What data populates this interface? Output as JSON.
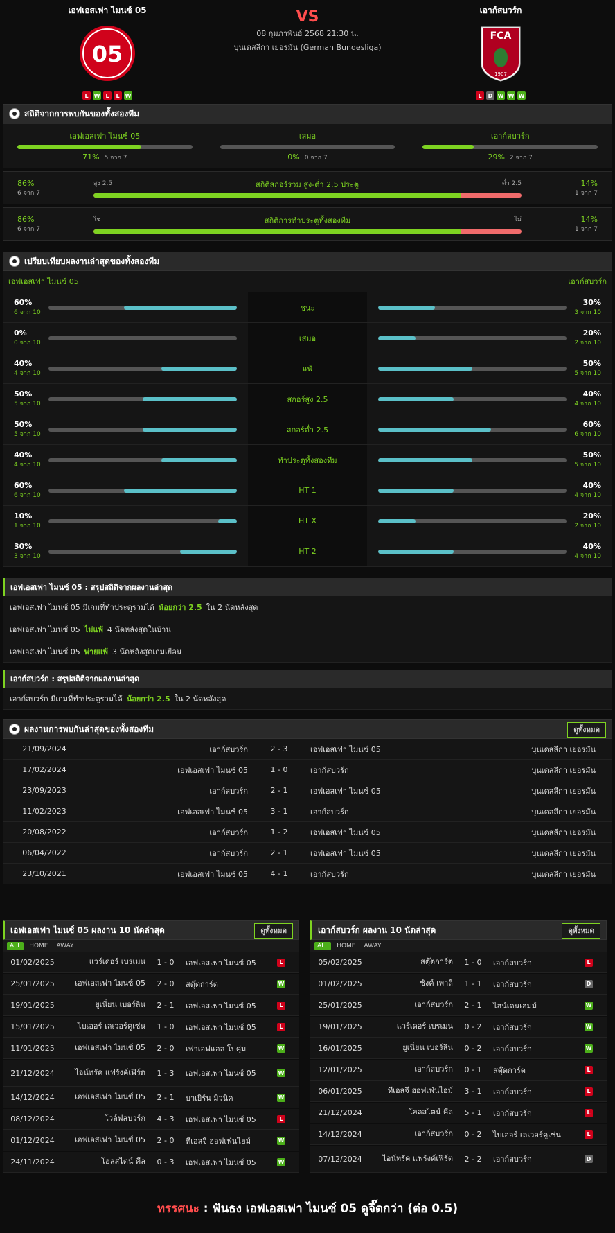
{
  "match": {
    "home": "เอฟเอสเฟา ไมนซ์ 05",
    "away": "เอาก์สบวร์ก",
    "vs": "VS",
    "date": "08 กุมภาพันธ์ 2568 21:30 น.",
    "league": "บุนเดสลีกา เยอรมัน (German Bundesliga)",
    "home_form": [
      "L",
      "W",
      "L",
      "L",
      "W"
    ],
    "away_form": [
      "L",
      "D",
      "W",
      "W",
      "W"
    ],
    "home_color": "#d0021b",
    "away_color": "#b00020"
  },
  "h2h": {
    "title": "สถิติจากการพบกันของทั้งสองทีม",
    "home": {
      "label": "เอฟเอสเฟา ไมนซ์ 05",
      "pct": "71%",
      "count": "5 จาก 7",
      "value": 0.71
    },
    "draw": {
      "label": "เสมอ",
      "pct": "0%",
      "count": "0 จาก 7",
      "value": 0
    },
    "away": {
      "label": "เอาก์สบวร์ก",
      "pct": "29%",
      "count": "2 จาก 7",
      "value": 0.29
    },
    "ou": {
      "left_pct": "86%",
      "left_count": "6 จาก 7",
      "left_label": "สูง 2.5",
      "title": "สถิติสกอร์รวม สูง-ต่ำ 2.5 ประตู",
      "right_label": "ต่ำ 2.5",
      "right_pct": "14%",
      "right_count": "1 จาก 7",
      "value": 0.86
    },
    "btts": {
      "left_pct": "86%",
      "left_count": "6 จาก 7",
      "left_label": "ใช่",
      "title": "สถิติการทำประตูทั้งสองทีม",
      "right_label": "ไม่",
      "right_pct": "14%",
      "right_count": "1 จาก 7",
      "value": 0.86
    }
  },
  "compare": {
    "title": "เปรียบเทียบผลงานล่าสุดของทั้งสองทีม",
    "home": "เอฟเอสเฟา ไมนซ์ 05",
    "away": "เอาก์สบวร์ก",
    "rows": [
      {
        "label": "ชนะ",
        "hp": "60%",
        "hc": "6 จาก 10",
        "hv": 0.6,
        "ap": "30%",
        "ac": "3 จาก 10",
        "av": 0.3
      },
      {
        "label": "เสมอ",
        "hp": "0%",
        "hc": "0 จาก 10",
        "hv": 0,
        "ap": "20%",
        "ac": "2 จาก 10",
        "av": 0.2
      },
      {
        "label": "แพ้",
        "hp": "40%",
        "hc": "4 จาก 10",
        "hv": 0.4,
        "ap": "50%",
        "ac": "5 จาก 10",
        "av": 0.5
      },
      {
        "label": "สกอร์สูง 2.5",
        "hp": "50%",
        "hc": "5 จาก 10",
        "hv": 0.5,
        "ap": "40%",
        "ac": "4 จาก 10",
        "av": 0.4
      },
      {
        "label": "สกอร์ต่ำ 2.5",
        "hp": "50%",
        "hc": "5 จาก 10",
        "hv": 0.5,
        "ap": "60%",
        "ac": "6 จาก 10",
        "av": 0.6
      },
      {
        "label": "ทำประตูทั้งสองทีม",
        "hp": "40%",
        "hc": "4 จาก 10",
        "hv": 0.4,
        "ap": "50%",
        "ac": "5 จาก 10",
        "av": 0.5
      },
      {
        "label": "HT 1",
        "hp": "60%",
        "hc": "6 จาก 10",
        "hv": 0.6,
        "ap": "40%",
        "ac": "4 จาก 10",
        "av": 0.4
      },
      {
        "label": "HT X",
        "hp": "10%",
        "hc": "1 จาก 10",
        "hv": 0.1,
        "ap": "20%",
        "ac": "2 จาก 10",
        "av": 0.2
      },
      {
        "label": "HT 2",
        "hp": "30%",
        "hc": "3 จาก 10",
        "hv": 0.3,
        "ap": "40%",
        "ac": "4 จาก 10",
        "av": 0.4
      }
    ]
  },
  "home_summary": {
    "title": "เอฟเอสเฟา ไมนซ์ 05 : สรุปสถิติจากผลงานล่าสุด",
    "lines": [
      {
        "a": "เอฟเอสเฟา ไมนซ์ 05  มีเกมที่ทำประตูรวมได้",
        "g": "น้อยกว่า  2.5",
        "b": "ใน 2 นัดหลังสุด"
      },
      {
        "a": "เอฟเอสเฟา ไมนซ์ 05",
        "g": "ไม่แพ้",
        "b": "4  นัดหลังสุดในบ้าน"
      },
      {
        "a": "เอฟเอสเฟา ไมนซ์ 05",
        "g": "พ่ายแพ้",
        "b": "3  นัดหลังสุดเกมเยือน"
      }
    ]
  },
  "away_summary": {
    "title": "เอาก์สบวร์ก : สรุปสถิติจากผลงานล่าสุด",
    "lines": [
      {
        "a": "เอาก์สบวร์ก  มีเกมที่ทำประตูรวมได้",
        "g": "น้อยกว่า  2.5",
        "b": "ใน 2 นัดหลังสุด"
      }
    ]
  },
  "h2h_results": {
    "title": "ผลงานการพบกันล่าสุดของทั้งสองทีม",
    "view_all": "ดูทั้งหมด",
    "rows": [
      {
        "d": "21/09/2024",
        "h": "เอาก์สบวร์ก",
        "s": "2 - 3",
        "a": "เอฟเอสเฟา ไมนซ์ 05",
        "l": "บุนเดสลีกา เยอรมัน"
      },
      {
        "d": "17/02/2024",
        "h": "เอฟเอสเฟา ไมนซ์ 05",
        "s": "1 - 0",
        "a": "เอาก์สบวร์ก",
        "l": "บุนเดสลีกา เยอรมัน"
      },
      {
        "d": "23/09/2023",
        "h": "เอาก์สบวร์ก",
        "s": "2 - 1",
        "a": "เอฟเอสเฟา ไมนซ์ 05",
        "l": "บุนเดสลีกา เยอรมัน"
      },
      {
        "d": "11/02/2023",
        "h": "เอฟเอสเฟา ไมนซ์ 05",
        "s": "3 - 1",
        "a": "เอาก์สบวร์ก",
        "l": "บุนเดสลีกา เยอรมัน"
      },
      {
        "d": "20/08/2022",
        "h": "เอาก์สบวร์ก",
        "s": "1 - 2",
        "a": "เอฟเอสเฟา ไมนซ์ 05",
        "l": "บุนเดสลีกา เยอรมัน"
      },
      {
        "d": "06/04/2022",
        "h": "เอาก์สบวร์ก",
        "s": "2 - 1",
        "a": "เอฟเอสเฟา ไมนซ์ 05",
        "l": "บุนเดสลีกา เยอรมัน"
      },
      {
        "d": "23/10/2021",
        "h": "เอฟเอสเฟา ไมนซ์ 05",
        "s": "4 - 1",
        "a": "เอาก์สบวร์ก",
        "l": "บุนเดสลีกา เยอรมัน"
      }
    ]
  },
  "tabs": [
    "ALL",
    "HOME",
    "AWAY"
  ],
  "home_last10": {
    "title": "เอฟเอสเฟา ไมนซ์ 05 ผลงาน 10 นัดล่าสุด",
    "view_all": "ดูทั้งหมด",
    "rows": [
      {
        "d": "01/02/2025",
        "h": "แวร์เดอร์ เบรเมน",
        "s": "1 - 0",
        "a": "เอฟเอสเฟา ไมนซ์ 05",
        "r": "L"
      },
      {
        "d": "25/01/2025",
        "h": "เอฟเอสเฟา ไมนซ์ 05",
        "s": "2 - 0",
        "a": "สตุ๊ตการ์ต",
        "r": "W"
      },
      {
        "d": "19/01/2025",
        "h": "ยูเนี่ยน เบอร์ลิน",
        "s": "2 - 1",
        "a": "เอฟเอสเฟา ไมนซ์ 05",
        "r": "L"
      },
      {
        "d": "15/01/2025",
        "h": "ไบเออร์ เลเวอร์คูเซ่น",
        "s": "1 - 0",
        "a": "เอฟเอสเฟา ไมนซ์ 05",
        "r": "L"
      },
      {
        "d": "11/01/2025",
        "h": "เอฟเอสเฟา ไมนซ์ 05",
        "s": "2 - 0",
        "a": "เฟาเอฟแอล โบคุ่ม",
        "r": "W"
      },
      {
        "d": "21/12/2024",
        "h": "ไอน์ทรัค แฟร้งค์เฟิร์ต",
        "s": "1 - 3",
        "a": "เอฟเอสเฟา ไมนซ์ 05",
        "r": "W",
        "tall": true
      },
      {
        "d": "14/12/2024",
        "h": "เอฟเอสเฟา ไมนซ์ 05",
        "s": "2 - 1",
        "a": "บาเยิร์น มิวนิค",
        "r": "W"
      },
      {
        "d": "08/12/2024",
        "h": "โวล์ฟสบวร์ก",
        "s": "4 - 3",
        "a": "เอฟเอสเฟา ไมนซ์ 05",
        "r": "L"
      },
      {
        "d": "01/12/2024",
        "h": "เอฟเอสเฟา ไมนซ์ 05",
        "s": "2 - 0",
        "a": "ทีเอสจี ฮอฟเฟ่นไฮม์",
        "r": "W"
      },
      {
        "d": "24/11/2024",
        "h": "โฮลสไตน์ คีล",
        "s": "0 - 3",
        "a": "เอฟเอสเฟา ไมนซ์ 05",
        "r": "W"
      }
    ]
  },
  "away_last10": {
    "title": "เอาก์สบวร์ก ผลงาน 10 นัดล่าสุด",
    "view_all": "ดูทั้งหมด",
    "rows": [
      {
        "d": "05/02/2025",
        "h": "สตุ๊ตการ์ต",
        "s": "1 - 0",
        "a": "เอาก์สบวร์ก",
        "r": "L"
      },
      {
        "d": "01/02/2025",
        "h": "ซังค์ เพาลี",
        "s": "1 - 1",
        "a": "เอาก์สบวร์ก",
        "r": "D"
      },
      {
        "d": "25/01/2025",
        "h": "เอาก์สบวร์ก",
        "s": "2 - 1",
        "a": "ไฮน์เดนเฮมม์",
        "r": "W"
      },
      {
        "d": "19/01/2025",
        "h": "แวร์เดอร์ เบรเมน",
        "s": "0 - 2",
        "a": "เอาก์สบวร์ก",
        "r": "W"
      },
      {
        "d": "16/01/2025",
        "h": "ยูเนี่ยน เบอร์ลิน",
        "s": "0 - 2",
        "a": "เอาก์สบวร์ก",
        "r": "W"
      },
      {
        "d": "12/01/2025",
        "h": "เอาก์สบวร์ก",
        "s": "0 - 1",
        "a": "สตุ๊ตการ์ต",
        "r": "L"
      },
      {
        "d": "06/01/2025",
        "h": "ทีเอสจี ฮอฟเฟ่นไฮม์",
        "s": "3 - 1",
        "a": "เอาก์สบวร์ก",
        "r": "L"
      },
      {
        "d": "21/12/2024",
        "h": "โฮลสไตน์ คีล",
        "s": "5 - 1",
        "a": "เอาก์สบวร์ก",
        "r": "L"
      },
      {
        "d": "14/12/2024",
        "h": "เอาก์สบวร์ก",
        "s": "0 - 2",
        "a": "ไบเออร์ เลเวอร์คูเซ่น",
        "r": "L"
      },
      {
        "d": "07/12/2024",
        "h": "ไอน์ทรัค แฟร้งค์เฟิร์ต",
        "s": "2 - 2",
        "a": "เอาก์สบวร์ก",
        "r": "D",
        "tall": true
      }
    ]
  },
  "tip": {
    "label": "ทรรศนะ",
    "sep": ":",
    "text": "ฟันธง เอฟเอสเฟา ไมนซ์ 05 ดูจึ๊ดกว่า (ต่อ 0.5)"
  }
}
